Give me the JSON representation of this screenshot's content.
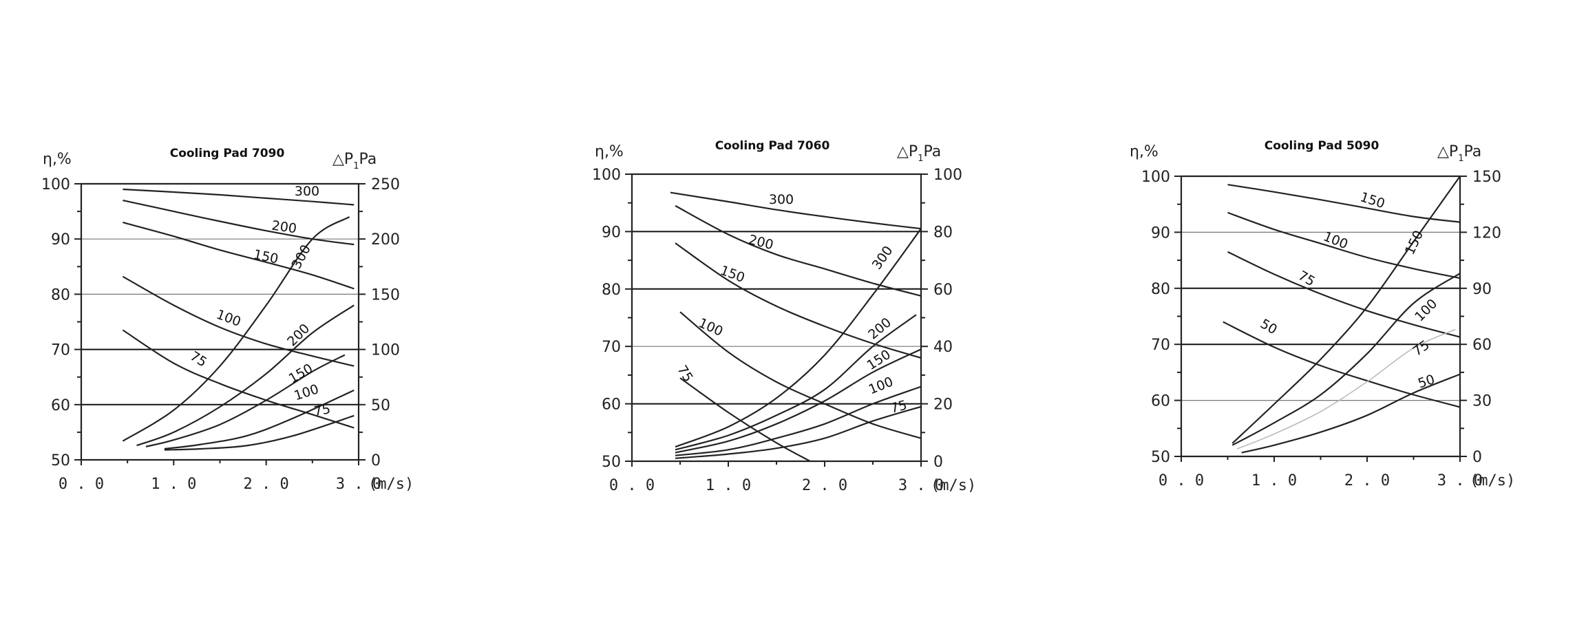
{
  "chart_data": [
    {
      "type": "line",
      "title": "Cooling Pad 7090",
      "ylabel": "η,%",
      "y2label": "△P,Pa",
      "y2label_parts": [
        "△P",
        "1",
        "Pa"
      ],
      "xunit": "(m/s)",
      "xticks": [
        "0.0",
        "1.0",
        "2.0",
        "3.0"
      ],
      "xlim": [
        0,
        3
      ],
      "ylim": [
        50,
        100
      ],
      "yticks": [
        "50",
        "60",
        "70",
        "80",
        "90",
        "100"
      ],
      "y2lim": [
        0,
        250
      ],
      "y2ticks": [
        "0",
        "50",
        "100",
        "150",
        "200",
        "250"
      ],
      "grid_major": [
        60,
        70
      ],
      "grid_minor": [
        80,
        90
      ],
      "efficiency_series": [
        {
          "name": "300",
          "x": [
            0.45,
            1.0,
            1.5,
            2.0,
            2.5,
            2.95
          ],
          "y": [
            99,
            98.5,
            98,
            97.4,
            96.8,
            96.2
          ]
        },
        {
          "name": "200",
          "x": [
            0.45,
            1.0,
            1.5,
            2.0,
            2.5,
            2.95
          ],
          "y": [
            97,
            95,
            93.2,
            91.5,
            90,
            89
          ]
        },
        {
          "name": "150",
          "x": [
            0.45,
            1.0,
            1.5,
            2.0,
            2.5,
            2.95
          ],
          "y": [
            93,
            90.5,
            88,
            85.8,
            83.5,
            81
          ]
        },
        {
          "name": "100",
          "x": [
            0.45,
            1.0,
            1.5,
            2.0,
            2.5,
            2.95
          ],
          "y": [
            83.2,
            78,
            74,
            71,
            68.8,
            67
          ]
        },
        {
          "name": "75",
          "x": [
            0.45,
            1.0,
            1.5,
            2.0,
            2.5,
            2.95
          ],
          "y": [
            73.5,
            67.5,
            63.8,
            60.8,
            58.2,
            55.8
          ]
        }
      ],
      "pressure_series": [
        {
          "name": "300",
          "x": [
            0.45,
            1.0,
            1.5,
            2.0,
            2.5,
            2.9
          ],
          "y": [
            17,
            45,
            85,
            140,
            200,
            220
          ]
        },
        {
          "name": "200",
          "x": [
            0.6,
            1.0,
            1.5,
            2.0,
            2.5,
            2.95
          ],
          "y": [
            13,
            25,
            48,
            78,
            115,
            140
          ]
        },
        {
          "name": "150",
          "x": [
            0.7,
            1.0,
            1.5,
            2.0,
            2.5,
            2.85
          ],
          "y": [
            12,
            18,
            32,
            54,
            80,
            95
          ]
        },
        {
          "name": "100",
          "x": [
            0.9,
            1.3,
            1.8,
            2.3,
            2.95
          ],
          "y": [
            10,
            14,
            22,
            38,
            63
          ]
        },
        {
          "name": "75",
          "x": [
            0.9,
            1.3,
            1.8,
            2.3,
            2.95
          ],
          "y": [
            9,
            10,
            13,
            22,
            40
          ]
        }
      ],
      "curve_labels": [
        "300",
        "200",
        "150",
        "100",
        "75",
        "300",
        "200",
        "150",
        "100",
        "75"
      ]
    },
    {
      "type": "line",
      "title": "Cooling Pad 7060",
      "ylabel": "η,%",
      "y2label": "△P,Pa",
      "y2label_parts": [
        "△P",
        "1",
        "Pa"
      ],
      "xunit": "(m/s)",
      "xticks": [
        "0.0",
        "1.0",
        "2.0",
        "3.0"
      ],
      "xlim": [
        0,
        3
      ],
      "ylim": [
        50,
        100
      ],
      "yticks": [
        "50",
        "60",
        "70",
        "80",
        "90",
        "100"
      ],
      "y2lim": [
        0,
        100
      ],
      "y2ticks": [
        "0",
        "20",
        "40",
        "60",
        "80",
        "100"
      ],
      "grid_major": [
        60,
        80,
        90
      ],
      "grid_minor": [
        70
      ],
      "efficiency_series": [
        {
          "name": "300",
          "x": [
            0.4,
            1.0,
            1.5,
            2.0,
            2.5,
            3.0
          ],
          "y": [
            96.8,
            95.2,
            93.8,
            92.6,
            91.5,
            90.5
          ]
        },
        {
          "name": "200",
          "x": [
            0.45,
            1.0,
            1.5,
            2.0,
            2.5,
            3.0
          ],
          "y": [
            94.5,
            89.5,
            86,
            83.5,
            81,
            78.8
          ]
        },
        {
          "name": "150",
          "x": [
            0.45,
            1.0,
            1.5,
            2.0,
            2.5,
            3.0
          ],
          "y": [
            88,
            81.5,
            77,
            73.5,
            70.5,
            68
          ]
        },
        {
          "name": "100",
          "x": [
            0.5,
            1.0,
            1.5,
            2.0,
            2.5,
            3.0
          ],
          "y": [
            76,
            69,
            63.8,
            60,
            56.5,
            54
          ]
        },
        {
          "name": "75",
          "x": [
            0.5,
            1.0,
            1.5,
            1.85
          ],
          "y": [
            64.5,
            58.5,
            53.2,
            50
          ]
        }
      ],
      "pressure_series": [
        {
          "name": "300",
          "x": [
            0.45,
            1.0,
            1.5,
            2.0,
            2.5,
            3.0
          ],
          "y": [
            5,
            12,
            22,
            37,
            58,
            81
          ]
        },
        {
          "name": "200",
          "x": [
            0.45,
            1.0,
            1.5,
            2.0,
            2.5,
            2.95
          ],
          "y": [
            4,
            9,
            16,
            25,
            40,
            51
          ]
        },
        {
          "name": "150",
          "x": [
            0.45,
            1.0,
            1.5,
            2.0,
            2.5,
            3.0
          ],
          "y": [
            3,
            7,
            13,
            21,
            31,
            39
          ]
        },
        {
          "name": "100",
          "x": [
            0.45,
            1.0,
            1.5,
            2.0,
            2.5,
            3.0
          ],
          "y": [
            2,
            4,
            8,
            13,
            20,
            26
          ]
        },
        {
          "name": "75",
          "x": [
            0.45,
            1.0,
            1.5,
            2.0,
            2.5,
            3.0
          ],
          "y": [
            1,
            2.5,
            4.5,
            8,
            14,
            19
          ]
        }
      ],
      "curve_labels": [
        "300",
        "200",
        "150",
        "100",
        "75",
        "300",
        "200",
        "150",
        "100",
        "75"
      ]
    },
    {
      "type": "line",
      "title": "Cooling Pad 5090",
      "ylabel": "η,%",
      "y2label": "△P,Pa",
      "y2label_parts": [
        "△P",
        "1",
        "Pa"
      ],
      "xunit": "(m/s)",
      "xticks": [
        "0.0",
        "1.0",
        "2.0",
        "3.0"
      ],
      "xlim": [
        0,
        3
      ],
      "ylim": [
        50,
        100
      ],
      "yticks": [
        "50",
        "60",
        "70",
        "80",
        "90",
        "100"
      ],
      "y2lim": [
        0,
        150
      ],
      "y2ticks": [
        "0",
        "30",
        "60",
        "90",
        "120",
        "150"
      ],
      "grid_major": [
        70,
        80
      ],
      "grid_minor": [
        60,
        90
      ],
      "efficiency_series": [
        {
          "name": "150",
          "x": [
            0.5,
            1.0,
            1.5,
            2.0,
            2.5,
            3.0
          ],
          "y": [
            98.5,
            97.2,
            95.8,
            94.3,
            92.8,
            91.8
          ]
        },
        {
          "name": "100",
          "x": [
            0.5,
            1.0,
            1.5,
            2.0,
            2.5,
            3.0
          ],
          "y": [
            93.5,
            90.5,
            88,
            85.5,
            83.5,
            81.8
          ]
        },
        {
          "name": "75",
          "x": [
            0.5,
            1.0,
            1.5,
            2.0,
            2.5,
            3.0
          ],
          "y": [
            86.5,
            82.5,
            79,
            76,
            73.5,
            71.3
          ]
        },
        {
          "name": "50",
          "x": [
            0.45,
            1.0,
            1.5,
            2.0,
            2.5,
            3.0
          ],
          "y": [
            74,
            69.5,
            66.2,
            63.5,
            61,
            58.8
          ]
        }
      ],
      "pressure_series": [
        {
          "name": "150",
          "x": [
            0.55,
            1.0,
            1.5,
            2.0,
            2.5,
            3.0
          ],
          "y": [
            7,
            28,
            52,
            80,
            115,
            150
          ]
        },
        {
          "name": "100",
          "x": [
            0.55,
            1.0,
            1.5,
            2.0,
            2.5,
            3.0
          ],
          "y": [
            6,
            18,
            33,
            55,
            82,
            98
          ]
        },
        {
          "name": "75",
          "x": [
            0.6,
            1.0,
            1.5,
            2.0,
            2.5,
            2.95
          ],
          "y": [
            4,
            12,
            24,
            40,
            58,
            68
          ],
          "faint": true
        },
        {
          "name": "50",
          "x": [
            0.65,
            1.0,
            1.5,
            2.0,
            2.5,
            3.0
          ],
          "y": [
            2,
            6,
            13,
            22,
            34,
            44
          ]
        }
      ],
      "curve_labels": [
        "150",
        "100",
        "75",
        "50",
        "150",
        "100",
        "75",
        "50"
      ]
    }
  ]
}
